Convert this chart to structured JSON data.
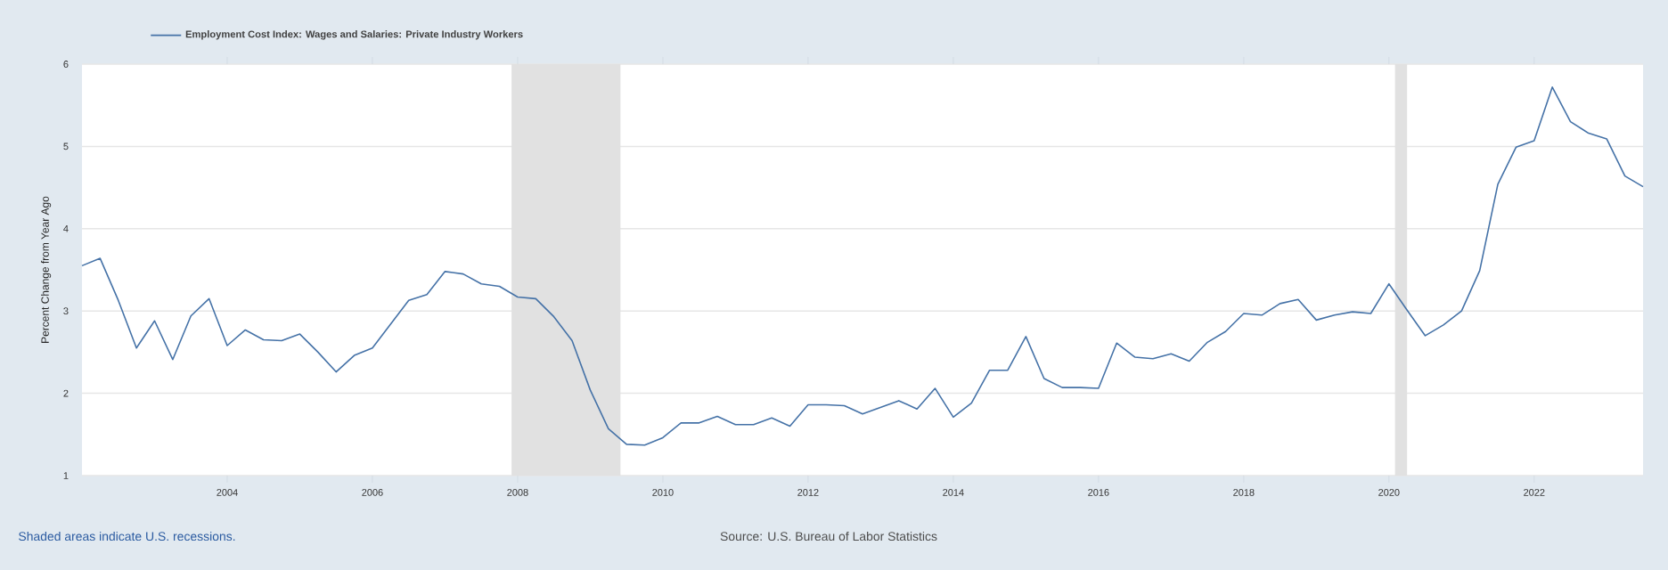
{
  "chart_data": {
    "type": "line",
    "ylabel": "Percent Change from Year Ago",
    "xlim": [
      "2002-01",
      "2023-07"
    ],
    "ylim": [
      1,
      6
    ],
    "xticks": [
      "2004",
      "2006",
      "2008",
      "2010",
      "2012",
      "2014",
      "2016",
      "2018",
      "2020",
      "2022"
    ],
    "yticks": [
      1,
      2,
      3,
      4,
      5,
      6
    ],
    "grid": "y",
    "legend": "top left",
    "marker": "none",
    "line_style": "solid",
    "bands": [
      {
        "axis": "x",
        "from": "2007-12",
        "to": "2009-06",
        "color": "#e1e1e1"
      },
      {
        "axis": "x",
        "from": "2020-02",
        "to": "2020-04",
        "color": "#e1e1e1"
      }
    ],
    "annotations": [
      "Shaded areas indicate U.S. recessions.",
      "Source: U.S. Bureau of Labor Statistics"
    ],
    "x": [
      "2002-01",
      "2002-04",
      "2002-07",
      "2002-10",
      "2003-01",
      "2003-04",
      "2003-07",
      "2003-10",
      "2004-01",
      "2004-04",
      "2004-07",
      "2004-10",
      "2005-01",
      "2005-04",
      "2005-07",
      "2005-10",
      "2006-01",
      "2006-04",
      "2006-07",
      "2006-10",
      "2007-01",
      "2007-04",
      "2007-07",
      "2007-10",
      "2008-01",
      "2008-04",
      "2008-07",
      "2008-10",
      "2009-01",
      "2009-04",
      "2009-07",
      "2009-10",
      "2010-01",
      "2010-04",
      "2010-07",
      "2010-10",
      "2011-01",
      "2011-04",
      "2011-07",
      "2011-10",
      "2012-01",
      "2012-04",
      "2012-07",
      "2012-10",
      "2013-01",
      "2013-04",
      "2013-07",
      "2013-10",
      "2014-01",
      "2014-04",
      "2014-07",
      "2014-10",
      "2015-01",
      "2015-04",
      "2015-07",
      "2015-10",
      "2016-01",
      "2016-04",
      "2016-07",
      "2016-10",
      "2017-01",
      "2017-04",
      "2017-07",
      "2017-10",
      "2018-01",
      "2018-04",
      "2018-07",
      "2018-10",
      "2019-01",
      "2019-04",
      "2019-07",
      "2019-10",
      "2020-01",
      "2020-04",
      "2020-07",
      "2020-10",
      "2021-01",
      "2021-04",
      "2021-07",
      "2021-10",
      "2022-01",
      "2022-04",
      "2022-07",
      "2022-10",
      "2023-01",
      "2023-04",
      "2023-07"
    ],
    "series": [
      {
        "name": "Employment Cost Index: Wages and Salaries: Private Industry Workers",
        "color": "#4572a7",
        "values": [
          3.55,
          3.64,
          3.13,
          2.55,
          2.88,
          2.41,
          2.94,
          3.15,
          2.58,
          2.77,
          2.65,
          2.64,
          2.72,
          2.5,
          2.26,
          2.46,
          2.55,
          2.84,
          3.13,
          3.2,
          3.48,
          3.45,
          3.33,
          3.3,
          3.17,
          3.15,
          2.93,
          2.64,
          2.04,
          1.57,
          1.38,
          1.37,
          1.46,
          1.64,
          1.64,
          1.72,
          1.62,
          1.62,
          1.7,
          1.6,
          1.86,
          1.86,
          1.85,
          1.75,
          1.83,
          1.91,
          1.81,
          2.06,
          1.71,
          1.88,
          2.28,
          2.28,
          2.69,
          2.18,
          2.07,
          2.07,
          2.06,
          2.61,
          2.44,
          2.42,
          2.48,
          2.39,
          2.62,
          2.75,
          2.97,
          2.95,
          3.09,
          3.14,
          2.89,
          2.95,
          2.99,
          2.97,
          3.33,
          3.01,
          2.7,
          2.83,
          3.0,
          3.49,
          4.54,
          4.99,
          5.07,
          5.72,
          5.3,
          5.16,
          5.09,
          4.64,
          4.51
        ]
      }
    ]
  }
}
